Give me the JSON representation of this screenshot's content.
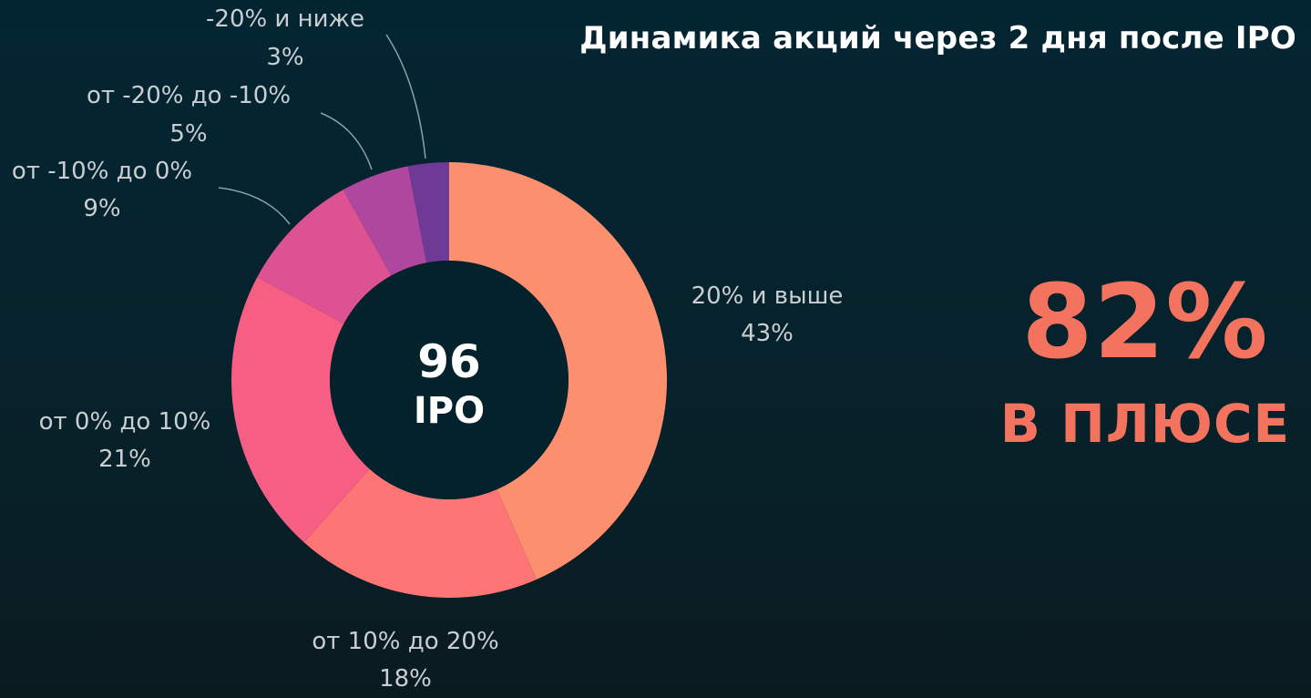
{
  "title": "Динамика акций через 2 дня после IPO",
  "center": {
    "count": "96",
    "unit": "IPO"
  },
  "highlight": {
    "value": "82%",
    "label": "В ПЛЮСЕ",
    "color": "#f4735e"
  },
  "chart_data": {
    "type": "pie",
    "donut": true,
    "title": "Динамика акций через 2 дня после IPO",
    "total_label": "96 IPO",
    "slices": [
      {
        "label": "20% и выше",
        "value": 43,
        "value_label": "43%",
        "color": "#fc906e"
      },
      {
        "label": "от 10% до 20%",
        "value": 18,
        "value_label": "18%",
        "color": "#fd7575"
      },
      {
        "label": "от 0% до 10%",
        "value": 21,
        "value_label": "21%",
        "color": "#f65e84"
      },
      {
        "label": "от -10% до 0%",
        "value": 9,
        "value_label": "9%",
        "color": "#dc5292"
      },
      {
        "label": "от -20% до -10%",
        "value": 5,
        "value_label": "5%",
        "color": "#b0479e"
      },
      {
        "label": "-20% и ниже",
        "value": 3,
        "value_label": "3%",
        "color": "#6e3a96"
      }
    ]
  }
}
